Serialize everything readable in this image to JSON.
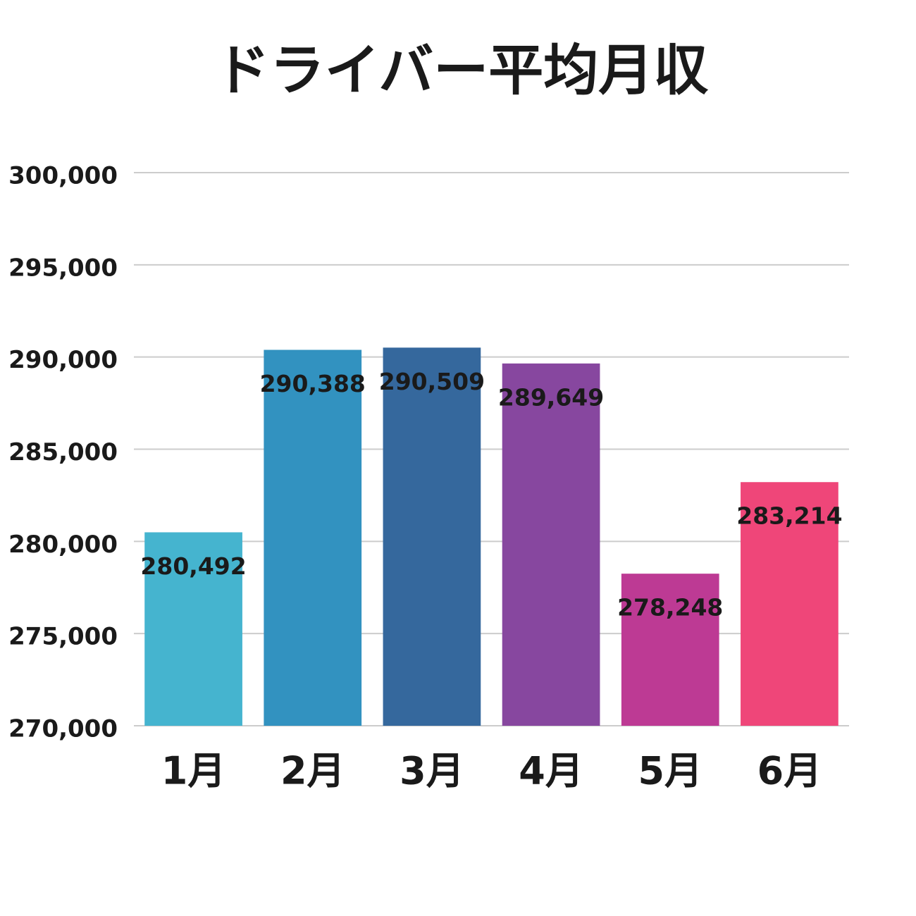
{
  "chart_data": {
    "type": "bar",
    "title": "ドライバー平均月収",
    "categories": [
      "1月",
      "2月",
      "3月",
      "4月",
      "5月",
      "6月"
    ],
    "values": [
      280492,
      290388,
      290509,
      289649,
      278248,
      283214
    ],
    "value_labels": [
      "280,492",
      "290,388",
      "290,509",
      "289,649",
      "278,248",
      "283,214"
    ],
    "colors": [
      "#45b4cf",
      "#3292c0",
      "#35689d",
      "#87479f",
      "#bd3a94",
      "#ef4679"
    ],
    "ylim": [
      270000,
      300000
    ],
    "yticks": [
      {
        "value": 270000,
        "label": "270,000"
      },
      {
        "value": 275000,
        "label": "275,000"
      },
      {
        "value": 280000,
        "label": "280,000"
      },
      {
        "value": 285000,
        "label": "285,000"
      },
      {
        "value": 290000,
        "label": "290,000"
      },
      {
        "value": 295000,
        "label": "295,000"
      },
      {
        "value": 300000,
        "label": "300,000"
      }
    ],
    "grid": true
  }
}
